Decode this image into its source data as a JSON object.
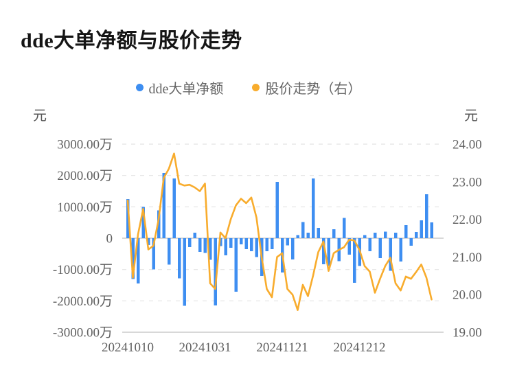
{
  "title": "dde大单净额与股价走势",
  "legend": [
    {
      "label": "dde大单净额",
      "color": "#3E8EF1"
    },
    {
      "label": "股价走势（右）",
      "color": "#F8AC2D"
    }
  ],
  "left_axis": {
    "unit": "元",
    "tick_labels": [
      "3000.00万",
      "2000.00万",
      "1000.00万",
      "0",
      "-1000.00万",
      "-2000.00万",
      "-3000.00万"
    ]
  },
  "right_axis": {
    "unit": "元",
    "tick_labels": [
      "24.00",
      "23.00",
      "22.00",
      "21.00",
      "20.00",
      "19.00"
    ]
  },
  "x_axis": {
    "tick_labels": [
      "20241010",
      "20241031",
      "20241121",
      "20241212"
    ],
    "tick_indices": [
      0,
      15,
      30,
      45
    ]
  },
  "colors": {
    "bar": "#3E8EF1",
    "line": "#F8AC2D",
    "grid_dashed": "#E4E4E4",
    "grid_solid": "#CCCCCC",
    "tick_text": "#606060"
  },
  "chart_data": {
    "type": "combo",
    "n_points": 60,
    "x_tick_labels": [
      "20241010",
      "20241031",
      "20241121",
      "20241212"
    ],
    "x_tick_indices": [
      0,
      15,
      30,
      45
    ],
    "left_ylim": [
      -3000,
      3000
    ],
    "right_ylim": [
      19,
      24
    ],
    "left_unit": "万元",
    "right_unit": "元",
    "grid": "dashed-horizontal",
    "legend_position": "top-center",
    "series": [
      {
        "name": "dde大单净额",
        "type": "bar",
        "axis": "left",
        "unit": "万",
        "values": [
          1250,
          -1300,
          -1450,
          1000,
          -220,
          -1000,
          890,
          2080,
          -840,
          1900,
          -1280,
          -2160,
          -290,
          170,
          -440,
          -470,
          -690,
          -2150,
          -250,
          -550,
          -310,
          -1710,
          -200,
          -350,
          -420,
          -600,
          -1200,
          -420,
          -350,
          1800,
          -1100,
          -230,
          -680,
          100,
          510,
          170,
          1900,
          330,
          -830,
          -890,
          290,
          -730,
          650,
          -530,
          -1420,
          -890,
          100,
          -420,
          170,
          -640,
          210,
          -1040,
          170,
          -740,
          420,
          -240,
          200,
          570,
          1400,
          500
        ]
      },
      {
        "name": "股价走势（右）",
        "type": "line",
        "axis": "right",
        "unit": "元",
        "values": [
          22.5,
          20.45,
          21.6,
          22.28,
          21.2,
          21.3,
          22.0,
          23.1,
          23.35,
          23.75,
          22.95,
          22.9,
          22.92,
          22.85,
          22.75,
          22.95,
          20.3,
          20.15,
          21.65,
          21.5,
          22.0,
          22.37,
          22.55,
          22.43,
          22.58,
          22.05,
          21.0,
          20.15,
          19.93,
          21.0,
          21.1,
          20.15,
          20.0,
          19.59,
          20.26,
          19.96,
          20.51,
          21.13,
          21.41,
          20.63,
          21.1,
          21.19,
          21.26,
          21.46,
          21.44,
          21.19,
          20.76,
          20.61,
          20.05,
          20.42,
          20.76,
          20.98,
          20.3,
          20.11,
          20.48,
          20.42,
          20.6,
          20.8,
          20.45,
          19.87
        ]
      }
    ]
  }
}
